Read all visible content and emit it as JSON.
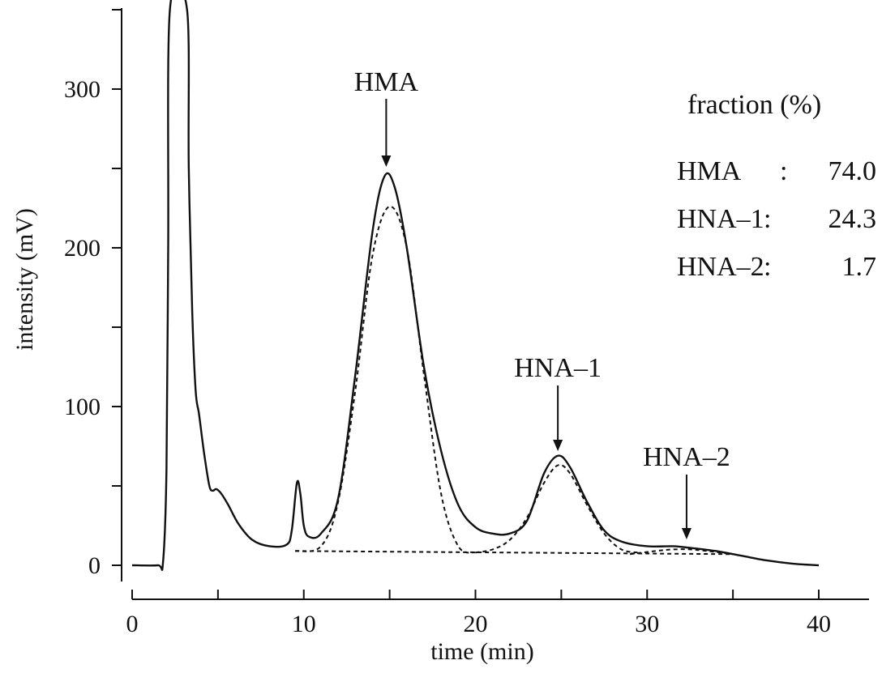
{
  "chart_data": {
    "type": "line",
    "xlabel": "time (min)",
    "ylabel": "intensity (mV)",
    "xlim": [
      0,
      40
    ],
    "ylim": [
      0,
      350
    ],
    "x_ticks": [
      0,
      10,
      20,
      30,
      40
    ],
    "y_ticks": [
      0,
      100,
      200,
      300
    ],
    "y_minor_ticks": [
      50,
      150,
      250,
      350
    ],
    "x_minor_ticks": [
      5,
      15,
      25,
      35
    ],
    "grid": false,
    "series": [
      {
        "style": "solid",
        "points": [
          [
            0,
            0
          ],
          [
            1.5,
            0
          ],
          [
            1.8,
            2
          ],
          [
            2.0,
            60
          ],
          [
            2.1,
            200
          ],
          [
            2.2,
            350
          ],
          [
            3.2,
            350
          ],
          [
            3.3,
            250
          ],
          [
            3.5,
            160
          ],
          [
            3.7,
            110
          ],
          [
            3.9,
            95
          ],
          [
            4.2,
            70
          ],
          [
            4.5,
            50
          ],
          [
            4.7,
            47
          ],
          [
            4.9,
            48
          ],
          [
            5.2,
            45
          ],
          [
            5.6,
            38
          ],
          [
            6.2,
            26
          ],
          [
            7.0,
            16
          ],
          [
            8.0,
            12
          ],
          [
            9.0,
            13
          ],
          [
            9.3,
            22
          ],
          [
            9.6,
            52
          ],
          [
            9.8,
            45
          ],
          [
            10.0,
            25
          ],
          [
            10.3,
            18
          ],
          [
            11.0,
            20
          ],
          [
            12.0,
            42
          ],
          [
            13.0,
            120
          ],
          [
            14.0,
            210
          ],
          [
            14.7,
            245
          ],
          [
            15.3,
            238
          ],
          [
            16.0,
            200
          ],
          [
            17.0,
            125
          ],
          [
            18.0,
            72
          ],
          [
            19.0,
            38
          ],
          [
            20.0,
            24
          ],
          [
            21.0,
            20
          ],
          [
            22.0,
            20
          ],
          [
            23.0,
            28
          ],
          [
            24.0,
            58
          ],
          [
            24.8,
            69
          ],
          [
            25.5,
            62
          ],
          [
            26.5,
            40
          ],
          [
            27.5,
            22
          ],
          [
            28.5,
            15
          ],
          [
            30.0,
            12
          ],
          [
            31.5,
            12
          ],
          [
            32.5,
            11
          ],
          [
            34.0,
            9
          ],
          [
            35.5,
            6
          ],
          [
            37.0,
            3
          ],
          [
            38.5,
            1
          ],
          [
            40.0,
            0
          ]
        ]
      },
      {
        "style": "dashed",
        "name": "HMA",
        "points": [
          [
            9.5,
            9
          ],
          [
            11.0,
            12
          ],
          [
            12.0,
            40
          ],
          [
            13.0,
            110
          ],
          [
            14.0,
            195
          ],
          [
            15.0,
            226
          ],
          [
            16.0,
            200
          ],
          [
            17.0,
            120
          ],
          [
            18.0,
            45
          ],
          [
            19.0,
            12
          ],
          [
            20.0,
            8
          ]
        ]
      },
      {
        "style": "dashed",
        "name": "HNA–1",
        "points": [
          [
            20.0,
            8
          ],
          [
            21.0,
            10
          ],
          [
            22.0,
            16
          ],
          [
            23.0,
            30
          ],
          [
            24.0,
            52
          ],
          [
            24.8,
            63
          ],
          [
            25.5,
            58
          ],
          [
            26.5,
            38
          ],
          [
            27.5,
            20
          ],
          [
            28.5,
            10
          ],
          [
            29.5,
            8
          ]
        ]
      },
      {
        "style": "dashed",
        "name": "HNA–2",
        "points": [
          [
            29.0,
            7
          ],
          [
            30.5,
            9
          ],
          [
            31.5,
            10
          ],
          [
            32.5,
            10
          ],
          [
            33.5,
            9
          ],
          [
            35.0,
            7
          ]
        ]
      },
      {
        "style": "dashed",
        "name": "baseline",
        "points": [
          [
            9.5,
            9
          ],
          [
            35.0,
            7
          ]
        ]
      }
    ],
    "annotations": [
      {
        "text": "HMA",
        "x": 14.8,
        "y": 245
      },
      {
        "text": "HNA–1",
        "x": 24.8,
        "y": 69
      },
      {
        "text": "HNA–2",
        "x": 32.3,
        "y": 12
      }
    ],
    "fraction_table": {
      "title": "fraction (%)",
      "rows": [
        {
          "label": "HMA",
          "sep": ":",
          "value": "74.0"
        },
        {
          "label": "HNA–1",
          "sep": ":",
          "value": "24.3"
        },
        {
          "label": "HNA–2",
          "sep": ":",
          "value": "1.7"
        }
      ]
    }
  }
}
